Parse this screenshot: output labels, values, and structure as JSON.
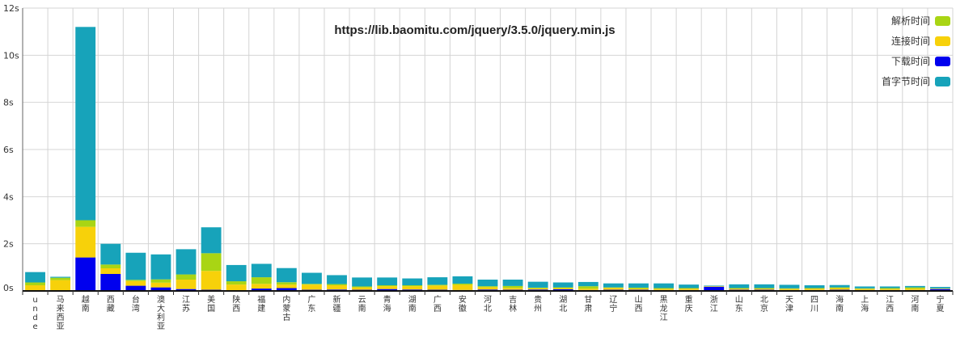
{
  "chart_data": {
    "type": "bar",
    "stacked": true,
    "title": "https://lib.baomitu.com/jquery/3.5.0/jquery.min.js",
    "xlabel": "",
    "ylabel": "",
    "ylim": [
      0,
      12
    ],
    "yticks": [
      "0s",
      "2s",
      "4s",
      "6s",
      "8s",
      "10s",
      "12s"
    ],
    "grid": true,
    "legend_position": "top-right",
    "categories": [
      "unde",
      "马来西亚",
      "越南",
      "西藏",
      "台湾",
      "澳大利亚",
      "江苏",
      "美国",
      "陕西",
      "福建",
      "内蒙古",
      "广东",
      "新疆",
      "云南",
      "青海",
      "湖南",
      "广西",
      "安徽",
      "河北",
      "吉林",
      "贵州",
      "湖北",
      "甘肃",
      "辽宁",
      "山西",
      "黑龙江",
      "重庆",
      "浙江",
      "山东",
      "北京",
      "天津",
      "四川",
      "海南",
      "上海",
      "江西",
      "河南",
      "宁夏"
    ],
    "series": [
      {
        "name": "下载时间",
        "color": "#0000ee",
        "values": [
          0.02,
          0.01,
          1.42,
          0.72,
          0.22,
          0.15,
          0.08,
          0.05,
          0.02,
          0.1,
          0.12,
          0.05,
          0.06,
          0.05,
          0.08,
          0.06,
          0.05,
          0.04,
          0.06,
          0.05,
          0.06,
          0.07,
          0.04,
          0.05,
          0.05,
          0.04,
          0.04,
          0.18,
          0.05,
          0.05,
          0.04,
          0.04,
          0.05,
          0.04,
          0.04,
          0.04,
          0.08
        ]
      },
      {
        "name": "连接时间",
        "color": "#f7d10a",
        "values": [
          0.22,
          0.45,
          1.3,
          0.24,
          0.2,
          0.2,
          0.4,
          0.8,
          0.25,
          0.2,
          0.15,
          0.22,
          0.18,
          0.1,
          0.12,
          0.14,
          0.18,
          0.22,
          0.1,
          0.08,
          0.05,
          0.05,
          0.06,
          0.08,
          0.05,
          0.05,
          0.06,
          0.02,
          0.05,
          0.05,
          0.05,
          0.06,
          0.07,
          0.05,
          0.05,
          0.06,
          0.02
        ]
      },
      {
        "name": "解析时间",
        "color": "#a9d514",
        "values": [
          0.12,
          0.1,
          0.28,
          0.16,
          0.05,
          0.14,
          0.22,
          0.75,
          0.14,
          0.28,
          0.1,
          0.03,
          0.05,
          0.04,
          0.04,
          0.04,
          0.03,
          0.05,
          0.04,
          0.08,
          0.03,
          0.03,
          0.1,
          0.02,
          0.04,
          0.03,
          0.02,
          0.01,
          0.02,
          0.02,
          0.02,
          0.02,
          0.03,
          0.02,
          0.03,
          0.05,
          0.01
        ]
      },
      {
        "name": "首字节时间",
        "color": "#17a3ba",
        "values": [
          0.44,
          0.04,
          8.2,
          0.88,
          1.15,
          1.06,
          1.07,
          1.1,
          0.69,
          0.57,
          0.6,
          0.47,
          0.38,
          0.38,
          0.33,
          0.29,
          0.32,
          0.31,
          0.28,
          0.27,
          0.25,
          0.21,
          0.18,
          0.17,
          0.18,
          0.2,
          0.15,
          0.02,
          0.16,
          0.16,
          0.15,
          0.12,
          0.1,
          0.08,
          0.07,
          0.06,
          0.06
        ]
      }
    ],
    "legend_order": [
      "解析时间",
      "连接时间",
      "下载时间",
      "首字节时间"
    ]
  }
}
